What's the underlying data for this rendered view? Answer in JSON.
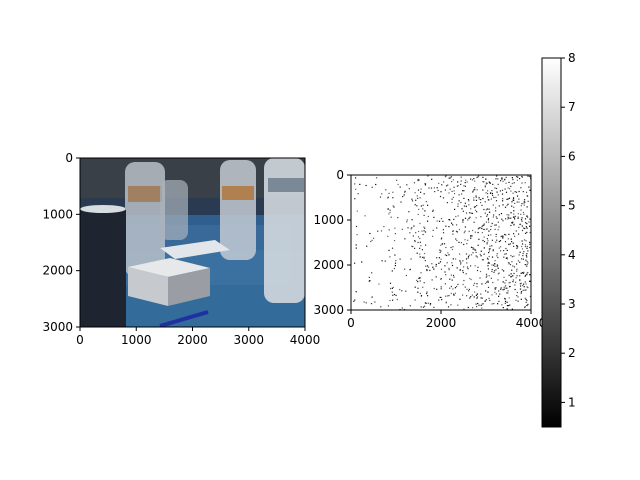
{
  "chart_data": [
    {
      "type": "image",
      "content": "photo of a table with plastic water bottles, a dark cup, and a small white box on a blue tablecloth",
      "xlim": [
        0,
        4000
      ],
      "ylim": [
        3000,
        0
      ],
      "xticks": [
        0,
        1000,
        2000,
        3000,
        4000
      ],
      "yticks": [
        0,
        1000,
        2000,
        3000
      ],
      "xtick_labels": [
        "0",
        "1000",
        "2000",
        "3000",
        "4000"
      ],
      "ytick_labels": [
        "0",
        "1000",
        "2000",
        "3000"
      ]
    },
    {
      "type": "heatmap",
      "content": "sparse grayscale map, mostly white with scattered dark speckles concentrated toward the right side",
      "colormap": "gray",
      "xlim": [
        0,
        4000
      ],
      "ylim": [
        3000,
        0
      ],
      "xticks": [
        0,
        2000,
        4000
      ],
      "yticks": [
        0,
        1000,
        2000,
        3000
      ],
      "xtick_labels": [
        "0",
        "2000",
        "4000"
      ],
      "ytick_labels": [
        "0",
        "1000",
        "2000",
        "3000"
      ],
      "colorbar": {
        "min": 0.5,
        "max": 8,
        "ticks": [
          1,
          2,
          3,
          4,
          5,
          6,
          7,
          8
        ],
        "tick_labels": [
          "1",
          "2",
          "3",
          "4",
          "5",
          "6",
          "7",
          "8"
        ]
      }
    }
  ]
}
